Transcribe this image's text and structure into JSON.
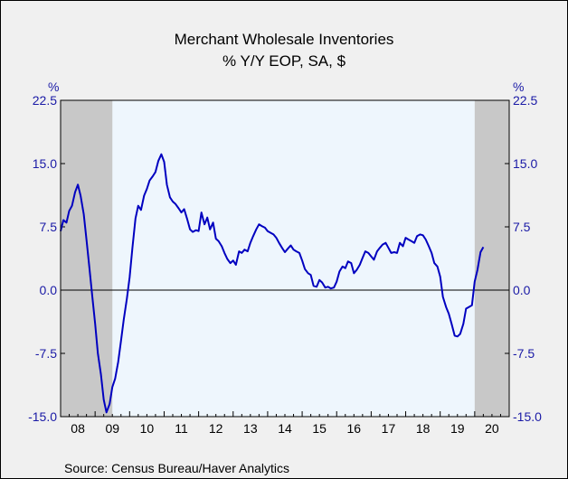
{
  "chart_data": {
    "type": "line",
    "title": "Merchant Wholesale Inventories",
    "subtitle": "% Y/Y   EOP, SA, $",
    "ylabel_left": "%",
    "ylabel_right": "%",
    "source": "Source:  Census Bureau/Haver Analytics",
    "ylim": [
      -15.0,
      22.5
    ],
    "yticks": [
      22.5,
      15.0,
      7.5,
      0.0,
      -7.5,
      -15.0
    ],
    "ytick_labels": [
      "22.5",
      "15.0",
      "7.5",
      "0.0",
      "-7.5",
      "-15.0"
    ],
    "xlim": [
      2008.0,
      2021.0
    ],
    "xtick_labels": [
      "08",
      "09",
      "10",
      "11",
      "12",
      "13",
      "14",
      "15",
      "16",
      "17",
      "18",
      "19",
      "20"
    ],
    "recessions": [
      [
        2008.0,
        2009.5
      ],
      [
        2020.0,
        2021.0
      ]
    ],
    "colors": {
      "line": "#0000c0",
      "recession": "#c8c8c8",
      "plot_bg": "#eef6fd",
      "axis_text": "#1a1aa6"
    },
    "series": [
      {
        "values": [
          [
            2008.0,
            7.0
          ],
          [
            2008.08,
            8.3
          ],
          [
            2008.17,
            8.0
          ],
          [
            2008.25,
            9.4
          ],
          [
            2008.33,
            10.0
          ],
          [
            2008.42,
            11.6
          ],
          [
            2008.5,
            12.5
          ],
          [
            2008.58,
            11.2
          ],
          [
            2008.67,
            9.0
          ],
          [
            2008.75,
            6.0
          ],
          [
            2008.83,
            2.8
          ],
          [
            2008.92,
            -0.8
          ],
          [
            2009.0,
            -4.0
          ],
          [
            2009.08,
            -7.5
          ],
          [
            2009.17,
            -10.0
          ],
          [
            2009.25,
            -13.0
          ],
          [
            2009.33,
            -14.5
          ],
          [
            2009.42,
            -13.5
          ],
          [
            2009.5,
            -11.5
          ],
          [
            2009.58,
            -10.5
          ],
          [
            2009.67,
            -8.5
          ],
          [
            2009.75,
            -6.0
          ],
          [
            2009.83,
            -3.5
          ],
          [
            2009.92,
            -1.0
          ],
          [
            2010.0,
            1.5
          ],
          [
            2010.08,
            5.0
          ],
          [
            2010.17,
            8.5
          ],
          [
            2010.25,
            10.0
          ],
          [
            2010.33,
            9.5
          ],
          [
            2010.42,
            11.2
          ],
          [
            2010.5,
            12.0
          ],
          [
            2010.58,
            13.0
          ],
          [
            2010.67,
            13.5
          ],
          [
            2010.75,
            14.0
          ],
          [
            2010.83,
            15.3
          ],
          [
            2010.92,
            16.1
          ],
          [
            2011.0,
            15.2
          ],
          [
            2011.08,
            12.5
          ],
          [
            2011.17,
            11.0
          ],
          [
            2011.25,
            10.5
          ],
          [
            2011.33,
            10.2
          ],
          [
            2011.42,
            9.7
          ],
          [
            2011.5,
            9.2
          ],
          [
            2011.58,
            9.6
          ],
          [
            2011.67,
            8.4
          ],
          [
            2011.75,
            7.2
          ],
          [
            2011.83,
            6.9
          ],
          [
            2011.92,
            7.1
          ],
          [
            2012.0,
            7.0
          ],
          [
            2012.08,
            9.2
          ],
          [
            2012.17,
            7.8
          ],
          [
            2012.25,
            8.6
          ],
          [
            2012.33,
            7.2
          ],
          [
            2012.42,
            8.0
          ],
          [
            2012.5,
            6.1
          ],
          [
            2012.58,
            5.8
          ],
          [
            2012.67,
            5.2
          ],
          [
            2012.75,
            4.4
          ],
          [
            2012.83,
            3.7
          ],
          [
            2012.92,
            3.2
          ],
          [
            2013.0,
            3.5
          ],
          [
            2013.08,
            3.0
          ],
          [
            2013.17,
            4.6
          ],
          [
            2013.25,
            4.4
          ],
          [
            2013.33,
            4.8
          ],
          [
            2013.42,
            4.6
          ],
          [
            2013.5,
            5.6
          ],
          [
            2013.58,
            6.4
          ],
          [
            2013.67,
            7.2
          ],
          [
            2013.75,
            7.8
          ],
          [
            2013.83,
            7.6
          ],
          [
            2013.92,
            7.4
          ],
          [
            2014.0,
            7.0
          ],
          [
            2014.08,
            6.8
          ],
          [
            2014.17,
            6.6
          ],
          [
            2014.25,
            6.2
          ],
          [
            2014.33,
            5.6
          ],
          [
            2014.42,
            5.0
          ],
          [
            2014.5,
            4.5
          ],
          [
            2014.58,
            4.9
          ],
          [
            2014.67,
            5.3
          ],
          [
            2014.75,
            4.8
          ],
          [
            2014.83,
            4.6
          ],
          [
            2014.92,
            4.4
          ],
          [
            2015.0,
            3.5
          ],
          [
            2015.08,
            2.5
          ],
          [
            2015.17,
            2.0
          ],
          [
            2015.25,
            1.8
          ],
          [
            2015.33,
            0.5
          ],
          [
            2015.42,
            0.4
          ],
          [
            2015.5,
            1.2
          ],
          [
            2015.58,
            0.9
          ],
          [
            2015.67,
            0.3
          ],
          [
            2015.75,
            0.4
          ],
          [
            2015.83,
            0.2
          ],
          [
            2015.92,
            0.3
          ],
          [
            2016.0,
            1.0
          ],
          [
            2016.08,
            2.2
          ],
          [
            2016.17,
            2.8
          ],
          [
            2016.25,
            2.6
          ],
          [
            2016.33,
            3.4
          ],
          [
            2016.42,
            3.2
          ],
          [
            2016.5,
            2.0
          ],
          [
            2016.58,
            2.4
          ],
          [
            2016.67,
            3.0
          ],
          [
            2016.75,
            3.8
          ],
          [
            2016.83,
            4.6
          ],
          [
            2016.92,
            4.4
          ],
          [
            2017.0,
            4.0
          ],
          [
            2017.08,
            3.6
          ],
          [
            2017.17,
            4.6
          ],
          [
            2017.25,
            5.0
          ],
          [
            2017.33,
            5.4
          ],
          [
            2017.42,
            5.6
          ],
          [
            2017.5,
            5.0
          ],
          [
            2017.58,
            4.4
          ],
          [
            2017.67,
            4.5
          ],
          [
            2017.75,
            4.4
          ],
          [
            2017.83,
            5.6
          ],
          [
            2017.92,
            5.2
          ],
          [
            2018.0,
            6.2
          ],
          [
            2018.08,
            6.0
          ],
          [
            2018.17,
            5.8
          ],
          [
            2018.25,
            5.6
          ],
          [
            2018.33,
            6.4
          ],
          [
            2018.42,
            6.6
          ],
          [
            2018.5,
            6.5
          ],
          [
            2018.58,
            6.0
          ],
          [
            2018.67,
            5.2
          ],
          [
            2018.75,
            4.4
          ],
          [
            2018.83,
            3.2
          ],
          [
            2018.92,
            2.8
          ],
          [
            2019.0,
            1.6
          ],
          [
            2019.08,
            -0.8
          ],
          [
            2019.17,
            -2.0
          ],
          [
            2019.25,
            -2.8
          ],
          [
            2019.33,
            -4.0
          ],
          [
            2019.42,
            -5.4
          ],
          [
            2019.5,
            -5.5
          ],
          [
            2019.58,
            -5.2
          ],
          [
            2019.67,
            -4.0
          ],
          [
            2019.75,
            -2.2
          ],
          [
            2019.83,
            -2.0
          ],
          [
            2019.92,
            -1.8
          ],
          [
            2020.0,
            1.0
          ],
          [
            2020.08,
            2.4
          ],
          [
            2020.17,
            4.5
          ],
          [
            2020.25,
            5.1
          ]
        ]
      }
    ]
  }
}
